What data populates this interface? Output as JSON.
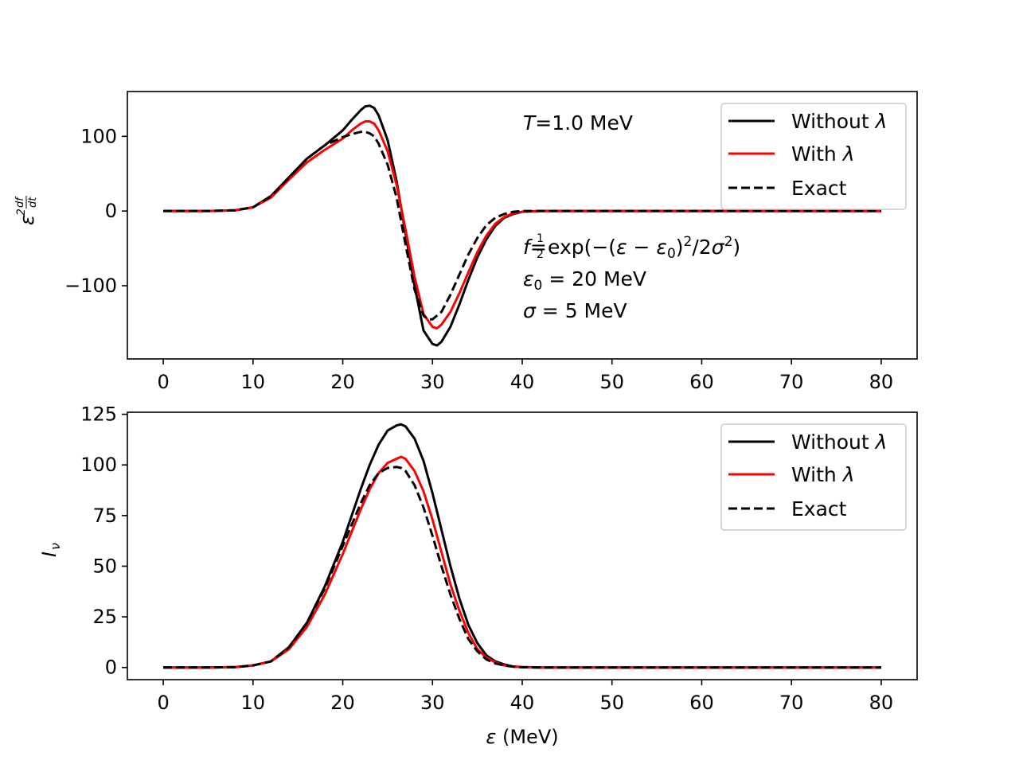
{
  "chart_data": [
    {
      "type": "line",
      "id": "top",
      "ylabel": "ε²df/dt",
      "xlabel": "",
      "xlim": [
        -4,
        84
      ],
      "ylim": [
        -198,
        160
      ],
      "xticks": [
        0,
        10,
        20,
        30,
        40,
        50,
        60,
        70,
        80
      ],
      "xtick_labels": [
        "0",
        "10",
        "20",
        "30",
        "40",
        "50",
        "60",
        "70",
        "80"
      ],
      "yticks": [
        100,
        0,
        -100
      ],
      "ytick_labels": [
        "100",
        "0",
        "−100"
      ],
      "legend_position": "top-right",
      "legend": [
        "Without λ",
        "With λ",
        "Exact"
      ],
      "annotations": {
        "temperature": "T=1.0 MeV",
        "formula": "f=½exp(−(ε−ε₀)²/2σ²)",
        "epsilon0": "ε₀ = 20 MeV",
        "sigma": "σ = 5 MeV"
      },
      "series": [
        {
          "name": "Without λ",
          "color": "#000000",
          "style": "solid",
          "x": [
            0,
            5,
            8,
            10,
            12,
            14,
            16,
            18,
            20,
            21,
            22,
            22.5,
            23,
            23.5,
            24,
            25,
            26,
            27,
            28,
            29,
            30,
            30.5,
            31,
            32,
            33,
            34,
            35,
            36,
            37,
            38,
            39,
            40,
            42,
            45,
            50,
            60,
            70,
            80
          ],
          "y": [
            0,
            0,
            1,
            5,
            20,
            45,
            70,
            88,
            108,
            122,
            135,
            140,
            141,
            138,
            128,
            95,
            40,
            -30,
            -100,
            -160,
            -178,
            -180,
            -175,
            -155,
            -125,
            -92,
            -62,
            -38,
            -20,
            -9,
            -4,
            -1,
            0,
            0,
            0,
            0,
            0,
            0
          ]
        },
        {
          "name": "With λ",
          "color": "#ff0000",
          "style": "solid",
          "x": [
            0,
            5,
            8,
            10,
            12,
            14,
            16,
            18,
            20,
            21,
            22,
            22.5,
            23,
            23.5,
            24,
            25,
            26,
            27,
            28,
            29,
            30,
            30.5,
            31,
            32,
            33,
            34,
            35,
            36,
            37,
            38,
            39,
            40,
            42,
            45,
            50,
            60,
            70,
            80
          ],
          "y": [
            0,
            0,
            1,
            5,
            18,
            42,
            65,
            82,
            97,
            108,
            117,
            120,
            120,
            117,
            108,
            80,
            35,
            -25,
            -88,
            -138,
            -155,
            -157,
            -152,
            -135,
            -110,
            -82,
            -55,
            -33,
            -17,
            -8,
            -3,
            -1,
            0,
            0,
            0,
            0,
            0,
            0
          ]
        },
        {
          "name": "Exact",
          "color": "#000000",
          "style": "dashed",
          "x": [
            0,
            5,
            8,
            10,
            12,
            14,
            16,
            18,
            20,
            21,
            22,
            22.5,
            23,
            23.5,
            24,
            25,
            26,
            27,
            28,
            29,
            29.5,
            30,
            31,
            32,
            33,
            34,
            35,
            36,
            37,
            38,
            39,
            40,
            42,
            45,
            50,
            60,
            70,
            80
          ],
          "y": [
            0,
            0,
            1,
            5,
            20,
            45,
            70,
            88,
            99,
            103,
            106,
            106,
            104,
            100,
            90,
            62,
            18,
            -45,
            -105,
            -140,
            -145,
            -145,
            -135,
            -112,
            -85,
            -58,
            -36,
            -19,
            -9,
            -4,
            -1,
            0,
            0,
            0,
            0,
            0,
            0,
            0
          ]
        }
      ]
    },
    {
      "type": "line",
      "id": "bottom",
      "ylabel": "Iν",
      "xlabel": "ε (MeV)",
      "xlim": [
        -4,
        84
      ],
      "ylim": [
        -6,
        126
      ],
      "xticks": [
        0,
        10,
        20,
        30,
        40,
        50,
        60,
        70,
        80
      ],
      "xtick_labels": [
        "0",
        "10",
        "20",
        "30",
        "40",
        "50",
        "60",
        "70",
        "80"
      ],
      "yticks": [
        0,
        25,
        50,
        75,
        100,
        125
      ],
      "ytick_labels": [
        "0",
        "25",
        "50",
        "75",
        "100",
        "125"
      ],
      "legend_position": "top-right",
      "legend": [
        "Without λ",
        "With λ",
        "Exact"
      ],
      "series": [
        {
          "name": "Without λ",
          "color": "#000000",
          "style": "solid",
          "x": [
            0,
            5,
            8,
            10,
            12,
            14,
            16,
            18,
            20,
            22,
            23,
            24,
            25,
            26,
            26.5,
            27,
            28,
            29,
            30,
            31,
            32,
            33,
            34,
            35,
            36,
            37,
            38,
            39,
            40,
            42,
            45,
            50,
            60,
            70,
            80
          ],
          "y": [
            0,
            0,
            0.2,
            1,
            3,
            10,
            22,
            40,
            62,
            88,
            100,
            110,
            117,
            119.5,
            120,
            119,
            113,
            102,
            86,
            68,
            50,
            34,
            21,
            12,
            6,
            3,
            1.5,
            0.5,
            0.2,
            0,
            0,
            0,
            0,
            0,
            0
          ]
        },
        {
          "name": "With λ",
          "color": "#ff0000",
          "style": "solid",
          "x": [
            0,
            5,
            8,
            10,
            12,
            14,
            16,
            18,
            20,
            22,
            23,
            24,
            25,
            26,
            26.5,
            27,
            28,
            29,
            30,
            31,
            32,
            33,
            34,
            35,
            36,
            37,
            38,
            39,
            40,
            42,
            45,
            50,
            60,
            70,
            80
          ],
          "y": [
            0,
            0,
            0.2,
            1,
            3,
            9,
            20,
            36,
            56,
            78,
            88,
            96,
            101,
            103,
            104,
            103,
            97,
            87,
            73,
            57,
            41,
            28,
            17,
            9,
            5,
            2.5,
            1,
            0.5,
            0.2,
            0,
            0,
            0,
            0,
            0,
            0
          ]
        },
        {
          "name": "Exact",
          "color": "#000000",
          "style": "dashed",
          "x": [
            0,
            5,
            8,
            10,
            12,
            14,
            16,
            18,
            20,
            22,
            23,
            24,
            25,
            26,
            26.5,
            27,
            28,
            29,
            30,
            31,
            32,
            33,
            34,
            35,
            36,
            37,
            38,
            39,
            40,
            42,
            45,
            50,
            60,
            70,
            80
          ],
          "y": [
            0,
            0,
            0.2,
            1,
            3,
            10,
            22,
            39,
            60,
            81,
            90,
            96,
            98.5,
            99,
            98.5,
            97,
            90,
            79,
            65,
            50,
            36,
            24,
            14,
            8,
            4,
            2,
            1,
            0.4,
            0.1,
            0,
            0,
            0,
            0,
            0,
            0
          ]
        }
      ]
    }
  ]
}
